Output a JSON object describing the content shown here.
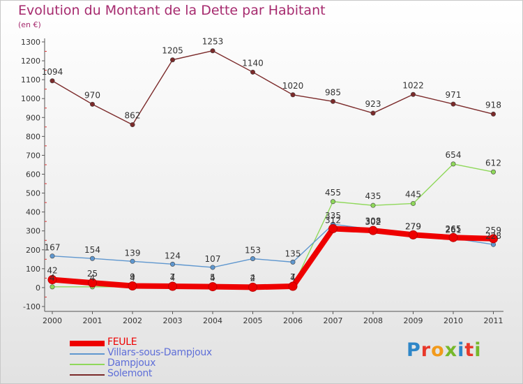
{
  "title": "Evolution du Montant de la Dette par Habitant",
  "unit_label": "(en €)",
  "logo_text": "Proxiti",
  "logo_colors": [
    "#2e86c8",
    "#e8382a",
    "#f29a1b",
    "#76b82a",
    "#2e86c8",
    "#e8382a",
    "#76b82a"
  ],
  "chart_data": {
    "type": "line",
    "title": "Evolution du Montant de la Dette par Habitant",
    "ylabel": "(en €)",
    "xlabel": "",
    "ylim": [
      -100,
      1300
    ],
    "yticks": [
      -100,
      0,
      100,
      200,
      300,
      400,
      500,
      600,
      700,
      800,
      900,
      1000,
      1100,
      1200,
      1300
    ],
    "grid": false,
    "legend_position": "bottom-left",
    "x": [
      "2000",
      "2001",
      "2002",
      "2003",
      "2004",
      "2005",
      "2006",
      "2007",
      "2008",
      "2009",
      "2010",
      "2011"
    ],
    "series": [
      {
        "name": "FEULE",
        "color": "#ee0000",
        "values": [
          42,
          25,
          9,
          7,
          5,
          2,
          7,
          312,
          302,
          279,
          265,
          259
        ],
        "labels": [
          "42",
          "25",
          "9",
          "7",
          "5",
          "2",
          "7",
          "312",
          "302",
          "279",
          "265",
          "259"
        ]
      },
      {
        "name": "Villars-sous-Dampjoux",
        "color": "#5f97cf",
        "values": [
          167,
          154,
          139,
          124,
          107,
          153,
          135,
          335,
          308,
          279,
          261,
          228
        ],
        "labels": [
          "167",
          "154",
          "139",
          "124",
          "107",
          "153",
          "135",
          "335",
          "308",
          "279",
          "261",
          "228"
        ]
      },
      {
        "name": "Dampjoux",
        "color": "#8fd85a",
        "values": [
          4,
          4,
          4,
          4,
          4,
          4,
          4,
          455,
          435,
          445,
          654,
          612
        ],
        "labels": [
          "4",
          "4",
          "4",
          "4",
          "4",
          "4",
          "4",
          "455",
          "435",
          "445",
          "654",
          "612"
        ]
      },
      {
        "name": "Solemont",
        "color": "#7b2a2a",
        "values": [
          1094,
          970,
          862,
          1205,
          1253,
          1140,
          1020,
          985,
          923,
          1022,
          971,
          918
        ],
        "labels": [
          "1094",
          "970",
          "862",
          "1205",
          "1253",
          "1140",
          "1020",
          "985",
          "923",
          "1022",
          "971",
          "918"
        ]
      }
    ]
  },
  "legend": [
    {
      "label": "FEULE",
      "color": "#ee0000",
      "text_color": "#ee0000"
    },
    {
      "label": "Villars-sous-Dampjoux",
      "color": "#5f97cf",
      "text_color": "#5f6fd8"
    },
    {
      "label": "Dampjoux",
      "color": "#8fd85a",
      "text_color": "#5f6fd8"
    },
    {
      "label": "Solemont",
      "color": "#7b2a2a",
      "text_color": "#5f6fd8"
    }
  ]
}
